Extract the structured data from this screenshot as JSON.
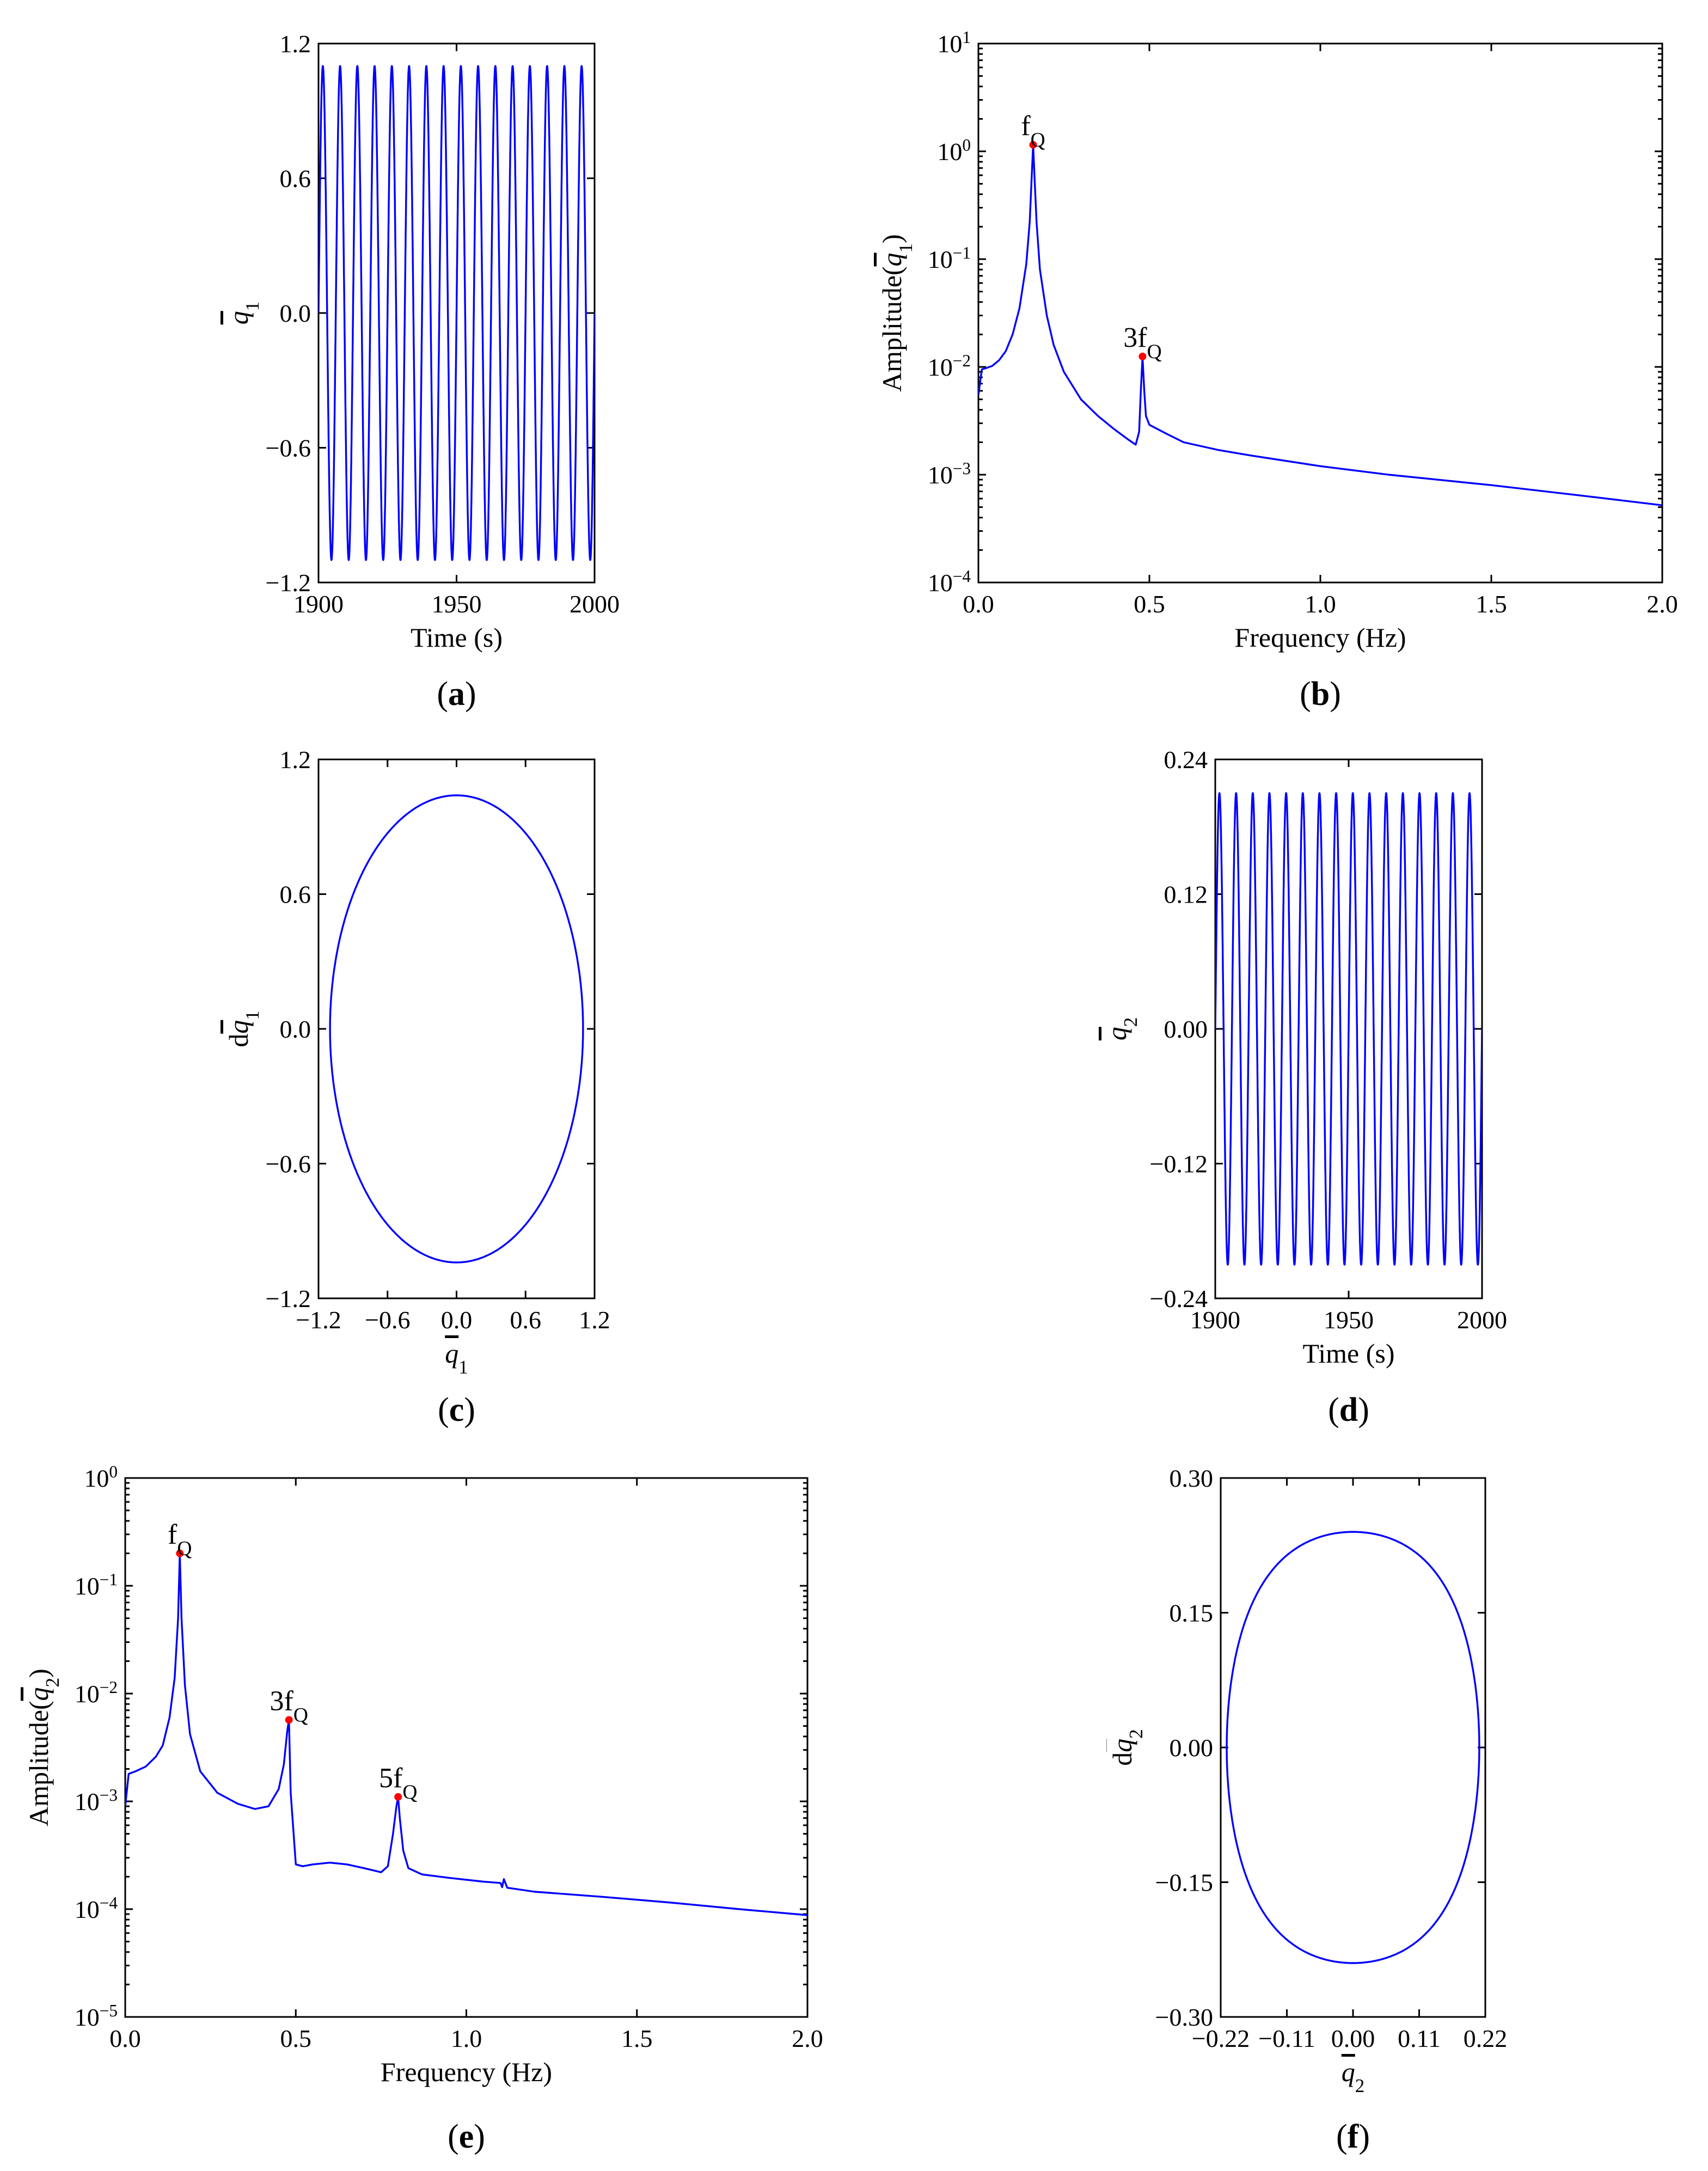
{
  "figure": {
    "colors": {
      "curve": "#0000ff",
      "peak_marker": "#ff0000",
      "axes": "#000000",
      "background": "#ffffff"
    }
  },
  "chart_data": [
    {
      "panel": "a",
      "type": "line",
      "caption": {
        "open": "(",
        "letter": "a",
        "close": ")"
      },
      "xlabel": "Time (s)",
      "ylabel": {
        "base": "q",
        "sub": "1"
      },
      "xlim": [
        1900,
        2000
      ],
      "ylim": [
        -1.2,
        1.2
      ],
      "yscale": "linear",
      "xticks": [
        1900,
        1950,
        2000
      ],
      "xtick_labels": [
        "1900",
        "1950",
        "2000"
      ],
      "yticks": [
        -1.2,
        -0.6,
        0.0,
        0.6,
        1.2
      ],
      "ytick_labels": [
        "−1.2",
        "−0.6",
        "0.0",
        "0.6",
        "1.2"
      ],
      "series": [
        {
          "name": "q1 time history",
          "kind": "sine",
          "amplitude": 1.1,
          "frequency_hz": 0.16,
          "harmonic3": 0.0
        }
      ]
    },
    {
      "panel": "b",
      "type": "line",
      "caption": {
        "open": "(",
        "letter": "b",
        "close": ")"
      },
      "xlabel": "Frequency (Hz)",
      "ylabel": {
        "prefix": "Amplitude(",
        "base": "q",
        "sub": "1",
        "suffix": ")"
      },
      "xlim": [
        0.0,
        2.0
      ],
      "ylim": [
        0.0001,
        10
      ],
      "yscale": "log",
      "xticks": [
        0.0,
        0.5,
        1.0,
        1.5,
        2.0
      ],
      "xtick_labels": [
        "0.0",
        "0.5",
        "1.0",
        "1.5",
        "2.0"
      ],
      "yticks": [
        0.0001,
        0.001,
        0.01,
        0.1,
        1,
        10
      ],
      "ytick_labels": [
        {
          "base": "10",
          "exp": "−4"
        },
        {
          "base": "10",
          "exp": "−3"
        },
        {
          "base": "10",
          "exp": "−2"
        },
        {
          "base": "10",
          "exp": "−1"
        },
        {
          "base": "10",
          "exp": "0"
        },
        {
          "base": "10",
          "exp": "1"
        }
      ],
      "series": [
        {
          "name": "Amplitude spectrum of q1",
          "x": [
            0.0,
            0.01,
            0.02,
            0.04,
            0.06,
            0.08,
            0.1,
            0.12,
            0.14,
            0.15,
            0.155,
            0.16,
            0.165,
            0.17,
            0.18,
            0.2,
            0.22,
            0.25,
            0.3,
            0.35,
            0.4,
            0.44,
            0.46,
            0.47,
            0.475,
            0.48,
            0.485,
            0.49,
            0.5,
            0.55,
            0.6,
            0.7,
            0.8,
            1.0,
            1.2,
            1.5,
            1.8,
            2.0
          ],
          "y": [
            0.0055,
            0.0095,
            0.0097,
            0.0102,
            0.0115,
            0.014,
            0.02,
            0.035,
            0.09,
            0.22,
            0.5,
            1.15,
            0.5,
            0.22,
            0.08,
            0.03,
            0.016,
            0.009,
            0.005,
            0.0035,
            0.0026,
            0.0021,
            0.0019,
            0.0025,
            0.006,
            0.0125,
            0.006,
            0.0035,
            0.0029,
            0.0024,
            0.002,
            0.0017,
            0.0015,
            0.0012,
            0.001,
            0.0008,
            0.00062,
            0.00052
          ]
        }
      ],
      "peaks": [
        {
          "label_base": "f",
          "label_sub": "Q",
          "x": 0.16,
          "y": 1.15
        },
        {
          "label_base": "3f",
          "label_sub": "Q",
          "x": 0.48,
          "y": 0.0125
        }
      ]
    },
    {
      "panel": "c",
      "type": "line",
      "caption": {
        "open": "(",
        "letter": "c",
        "close": ")"
      },
      "xlabel": {
        "base": "q",
        "sub": "1"
      },
      "ylabel": {
        "prefix": "d",
        "base": "q",
        "sub": "1"
      },
      "xlim": [
        -1.2,
        1.2
      ],
      "ylim": [
        -1.2,
        1.2
      ],
      "yscale": "linear",
      "xticks": [
        -1.2,
        -0.6,
        0.0,
        0.6,
        1.2
      ],
      "xtick_labels": [
        "−1.2",
        "−0.6",
        "0.0",
        "0.6",
        "1.2"
      ],
      "yticks": [
        -1.2,
        -0.6,
        0.0,
        0.6,
        1.2
      ],
      "ytick_labels": [
        "−1.2",
        "−0.6",
        "0.0",
        "0.6",
        "1.2"
      ],
      "series": [
        {
          "name": "phase portrait q1",
          "kind": "orbit",
          "x_amplitude": 1.1,
          "y_amplitude": 1.04,
          "shape": 0.0
        }
      ]
    },
    {
      "panel": "d",
      "type": "line",
      "caption": {
        "open": "(",
        "letter": "d",
        "close": ")"
      },
      "xlabel": "Time (s)",
      "ylabel": {
        "base": "q",
        "sub": "2"
      },
      "xlim": [
        1900,
        2000
      ],
      "ylim": [
        -0.24,
        0.24
      ],
      "yscale": "linear",
      "xticks": [
        1900,
        1950,
        2000
      ],
      "xtick_labels": [
        "1900",
        "1950",
        "2000"
      ],
      "yticks": [
        -0.24,
        -0.12,
        0.0,
        0.12,
        0.24
      ],
      "ytick_labels": [
        "−0.24",
        "−0.12",
        "0.00",
        "0.12",
        "0.24"
      ],
      "series": [
        {
          "name": "q2 time history",
          "kind": "sine",
          "amplitude": 0.21,
          "frequency_hz": 0.16,
          "harmonic3": 0.0
        }
      ]
    },
    {
      "panel": "e",
      "type": "line",
      "caption": {
        "open": "(",
        "letter": "e",
        "close": ")"
      },
      "xlabel": "Frequency (Hz)",
      "ylabel": {
        "prefix": "Amplitude(",
        "base": "q",
        "sub": "2",
        "suffix": ")"
      },
      "xlim": [
        0.0,
        2.0
      ],
      "ylim": [
        1e-05,
        1
      ],
      "yscale": "log",
      "xticks": [
        0.0,
        0.5,
        1.0,
        1.5,
        2.0
      ],
      "xtick_labels": [
        "0.0",
        "0.5",
        "1.0",
        "1.5",
        "2.0"
      ],
      "yticks": [
        1e-05,
        0.0001,
        0.001,
        0.01,
        0.1,
        1
      ],
      "ytick_labels": [
        {
          "base": "10",
          "exp": "−5"
        },
        {
          "base": "10",
          "exp": "−4"
        },
        {
          "base": "10",
          "exp": "−3"
        },
        {
          "base": "10",
          "exp": "−2"
        },
        {
          "base": "10",
          "exp": "−1"
        },
        {
          "base": "10",
          "exp": "0"
        }
      ],
      "series": [
        {
          "name": "Amplitude spectrum of q2",
          "x": [
            0.0,
            0.01,
            0.03,
            0.06,
            0.09,
            0.11,
            0.13,
            0.145,
            0.155,
            0.16,
            0.165,
            0.175,
            0.19,
            0.22,
            0.27,
            0.33,
            0.38,
            0.42,
            0.45,
            0.465,
            0.475,
            0.48,
            0.485,
            0.5,
            0.52,
            0.55,
            0.6,
            0.65,
            0.7,
            0.75,
            0.77,
            0.785,
            0.795,
            0.8,
            0.805,
            0.815,
            0.83,
            0.87,
            0.95,
            1.05,
            1.1,
            1.105,
            1.11,
            1.12,
            1.2,
            1.4,
            1.6,
            1.8,
            2.0
          ],
          "y": [
            0.0009,
            0.0018,
            0.0019,
            0.0021,
            0.0026,
            0.0033,
            0.006,
            0.014,
            0.05,
            0.2,
            0.05,
            0.012,
            0.0042,
            0.0019,
            0.0012,
            0.00095,
            0.00085,
            0.0009,
            0.0013,
            0.0022,
            0.0045,
            0.0057,
            0.0012,
            0.00026,
            0.00025,
            0.00026,
            0.00027,
            0.00026,
            0.00024,
            0.00022,
            0.00025,
            0.0005,
            0.0009,
            0.0011,
            0.0007,
            0.00035,
            0.00024,
            0.00021,
            0.000195,
            0.00018,
            0.000175,
            0.00016,
            0.00019,
            0.000158,
            0.000145,
            0.00013,
            0.000115,
            0.0001,
            8.8e-05
          ]
        }
      ],
      "peaks": [
        {
          "label_base": "f",
          "label_sub": "Q",
          "x": 0.16,
          "y": 0.2
        },
        {
          "label_base": "3f",
          "label_sub": "Q",
          "x": 0.48,
          "y": 0.0057
        },
        {
          "label_base": "5f",
          "label_sub": "Q",
          "x": 0.8,
          "y": 0.0011
        }
      ]
    },
    {
      "panel": "f",
      "type": "line",
      "caption": {
        "open": "(",
        "letter": "f",
        "close": ")"
      },
      "xlabel": {
        "base": "q",
        "sub": "2"
      },
      "ylabel": {
        "prefix": "d",
        "base": "q",
        "sub": "2"
      },
      "xlim": [
        -0.22,
        0.22
      ],
      "ylim": [
        -0.3,
        0.3
      ],
      "yscale": "linear",
      "xticks": [
        -0.22,
        -0.11,
        0.0,
        0.11,
        0.22
      ],
      "xtick_labels": [
        "−0.22",
        "−0.11",
        "0.00",
        "0.11",
        "0.22"
      ],
      "yticks": [
        -0.3,
        -0.15,
        0.0,
        0.15,
        0.3
      ],
      "ytick_labels": [
        "−0.30",
        "−0.15",
        "0.00",
        "0.15",
        "0.30"
      ],
      "series": [
        {
          "name": "phase portrait q2",
          "kind": "orbit",
          "x_amplitude": 0.21,
          "y_amplitude": 0.24,
          "shape": 0.17
        }
      ]
    }
  ]
}
